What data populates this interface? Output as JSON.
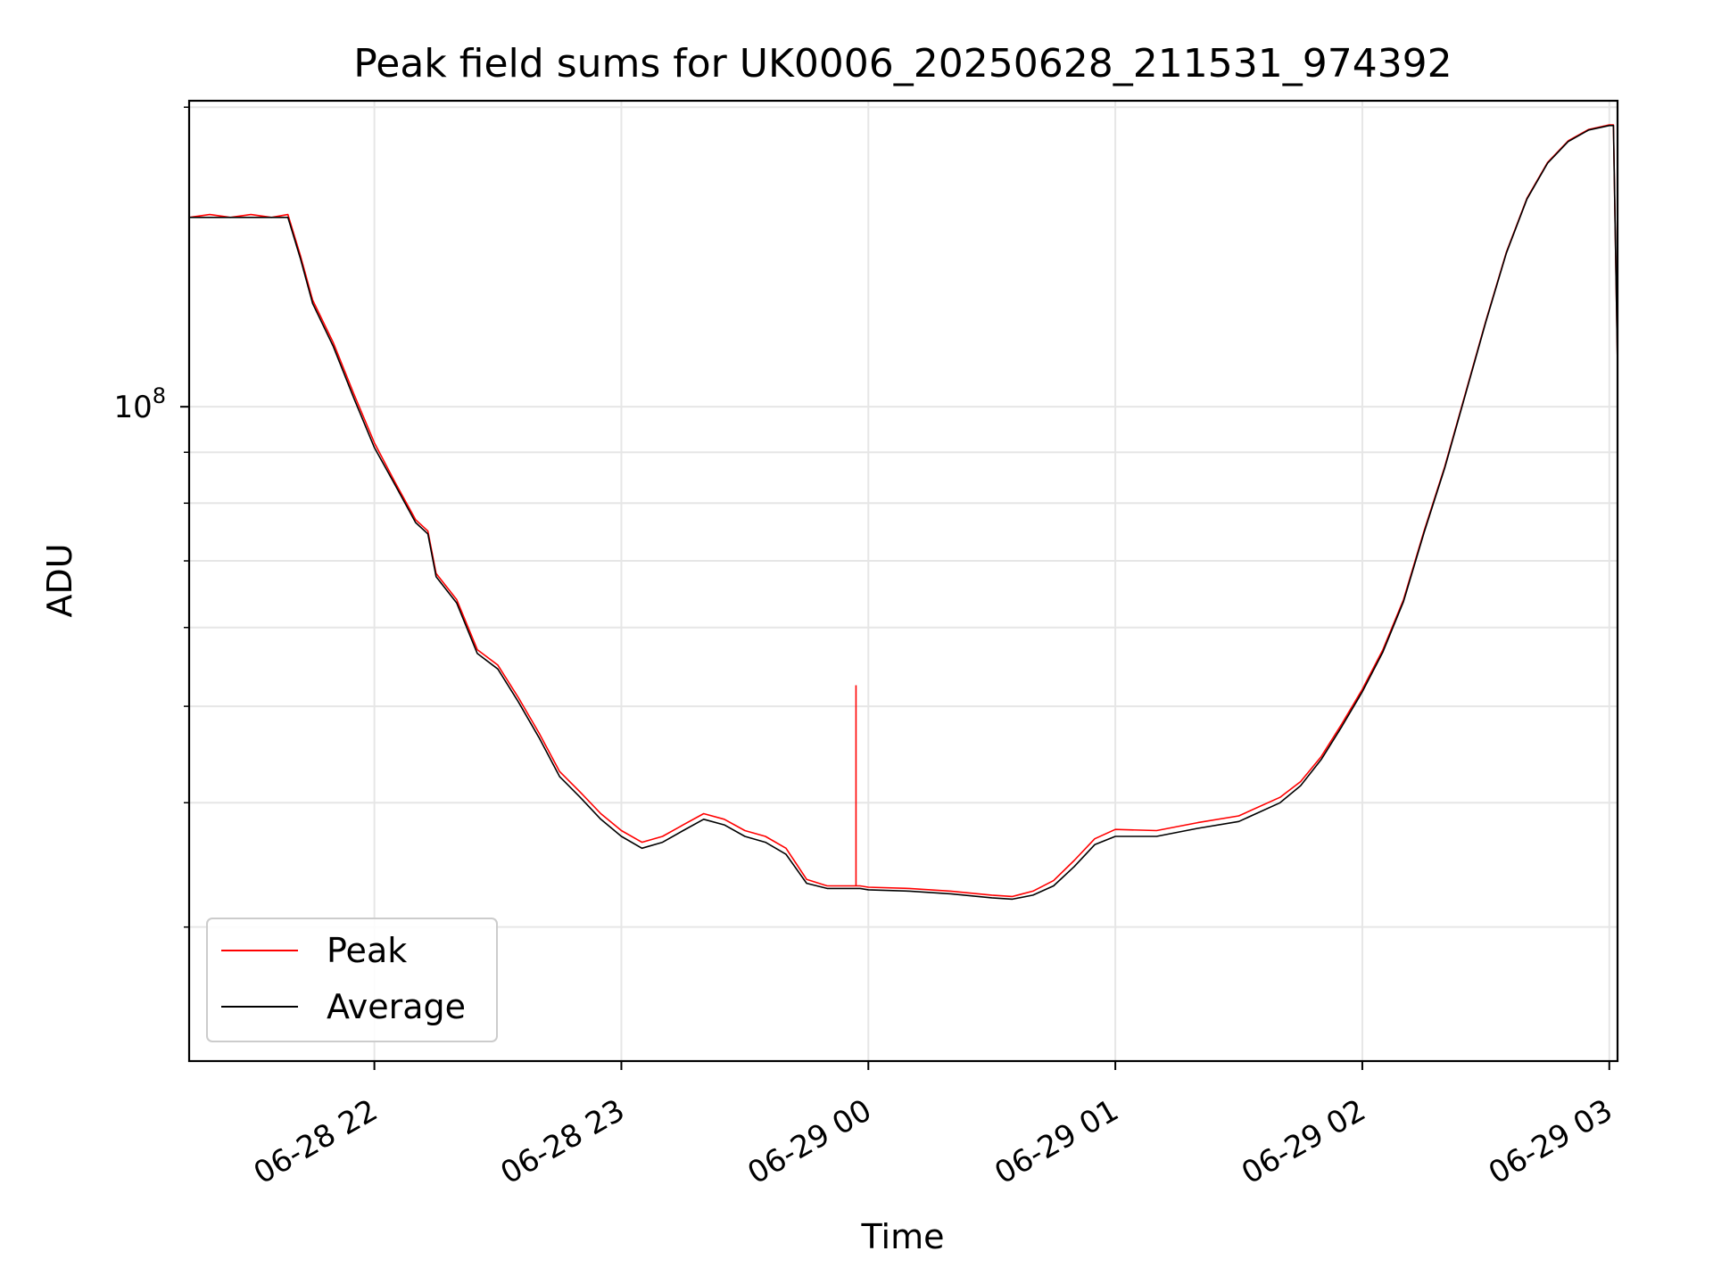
{
  "chart_data": {
    "type": "line",
    "title": "Peak field sums for UK0006_20250628_211531_974392",
    "xlabel": "Time",
    "ylabel": "ADU",
    "yscale": "log",
    "ylim": [
      22000000,
      203000000
    ],
    "xlim": [
      "2025-06-28 21:15",
      "2025-06-29 03:02"
    ],
    "x_ticks": [
      "06-28 22",
      "06-28 23",
      "06-29 00",
      "06-29 01",
      "06-29 02",
      "06-29 03"
    ],
    "y_ticks": [
      "10^8"
    ],
    "y_tick_text": {
      "base": "10",
      "exp": "8"
    },
    "grid": true,
    "legend_position": "lower-left",
    "series": [
      {
        "name": "Peak",
        "color": "#ff0000",
        "points": [
          [
            "21:15",
            155000000
          ],
          [
            "21:20",
            156000000
          ],
          [
            "21:25",
            155000000
          ],
          [
            "21:30",
            156000000
          ],
          [
            "21:35",
            155000000
          ],
          [
            "21:39",
            156000000
          ],
          [
            "21:42",
            142000000
          ],
          [
            "21:45",
            128000000
          ],
          [
            "21:50",
            116000000
          ],
          [
            "21:55",
            103000000
          ],
          [
            "22:00",
            92000000
          ],
          [
            "22:05",
            84000000
          ],
          [
            "22:10",
            77000000
          ],
          [
            "22:13",
            75000000
          ],
          [
            "22:15",
            68000000
          ],
          [
            "22:20",
            64000000
          ],
          [
            "22:25",
            57000000
          ],
          [
            "22:30",
            55000000
          ],
          [
            "22:35",
            51000000
          ],
          [
            "22:40",
            47000000
          ],
          [
            "22:45",
            43000000
          ],
          [
            "22:50",
            41000000
          ],
          [
            "22:55",
            39000000
          ],
          [
            "23:00",
            37500000
          ],
          [
            "23:05",
            36500000
          ],
          [
            "23:10",
            37000000
          ],
          [
            "23:15",
            38000000
          ],
          [
            "23:20",
            39000000
          ],
          [
            "23:25",
            38500000
          ],
          [
            "23:30",
            37500000
          ],
          [
            "23:35",
            37000000
          ],
          [
            "23:40",
            36000000
          ],
          [
            "23:45",
            33500000
          ],
          [
            "23:50",
            33000000
          ],
          [
            "23:55",
            33000000
          ],
          [
            "23:58",
            33000000
          ],
          [
            "00:00",
            32900000
          ],
          [
            "00:10",
            32800000
          ],
          [
            "00:20",
            32600000
          ],
          [
            "00:30",
            32300000
          ],
          [
            "00:35",
            32200000
          ],
          [
            "00:40",
            32600000
          ],
          [
            "00:45",
            33400000
          ],
          [
            "00:50",
            35000000
          ],
          [
            "00:55",
            36800000
          ],
          [
            "01:00",
            37600000
          ],
          [
            "01:10",
            37500000
          ],
          [
            "01:20",
            38200000
          ],
          [
            "01:30",
            38800000
          ],
          [
            "01:40",
            40500000
          ],
          [
            "01:45",
            42000000
          ],
          [
            "01:50",
            44500000
          ],
          [
            "01:55",
            48000000
          ],
          [
            "02:00",
            52000000
          ],
          [
            "02:05",
            57000000
          ],
          [
            "02:10",
            64000000
          ],
          [
            "02:15",
            75000000
          ],
          [
            "02:20",
            87000000
          ],
          [
            "02:25",
            103000000
          ],
          [
            "02:30",
            122000000
          ],
          [
            "02:35",
            143000000
          ],
          [
            "02:40",
            162000000
          ],
          [
            "02:45",
            176000000
          ],
          [
            "02:50",
            185000000
          ],
          [
            "02:55",
            190000000
          ],
          [
            "03:00",
            192000000
          ],
          [
            "03:01",
            192000000
          ],
          [
            "03:02",
            110000000
          ]
        ],
        "spikes": [
          {
            "time": "23:57",
            "value": 52500000
          }
        ]
      },
      {
        "name": "Average",
        "color": "#000000",
        "points": [
          [
            "21:15",
            155000000
          ],
          [
            "21:20",
            155000000
          ],
          [
            "21:25",
            155000000
          ],
          [
            "21:30",
            155000000
          ],
          [
            "21:35",
            155000000
          ],
          [
            "21:39",
            155000000
          ],
          [
            "21:42",
            141000000
          ],
          [
            "21:45",
            127000000
          ],
          [
            "21:50",
            115000000
          ],
          [
            "21:55",
            102000000
          ],
          [
            "22:00",
            91000000
          ],
          [
            "22:05",
            83500000
          ],
          [
            "22:10",
            76500000
          ],
          [
            "22:13",
            74500000
          ],
          [
            "22:15",
            67500000
          ],
          [
            "22:20",
            63500000
          ],
          [
            "22:25",
            56500000
          ],
          [
            "22:30",
            54500000
          ],
          [
            "22:35",
            50500000
          ],
          [
            "22:40",
            46500000
          ],
          [
            "22:45",
            42500000
          ],
          [
            "22:50",
            40500000
          ],
          [
            "22:55",
            38500000
          ],
          [
            "23:00",
            37000000
          ],
          [
            "23:05",
            36000000
          ],
          [
            "23:10",
            36500000
          ],
          [
            "23:15",
            37500000
          ],
          [
            "23:20",
            38500000
          ],
          [
            "23:25",
            38000000
          ],
          [
            "23:30",
            37000000
          ],
          [
            "23:35",
            36500000
          ],
          [
            "23:40",
            35500000
          ],
          [
            "23:45",
            33200000
          ],
          [
            "23:50",
            32800000
          ],
          [
            "23:55",
            32800000
          ],
          [
            "23:58",
            32800000
          ],
          [
            "00:00",
            32700000
          ],
          [
            "00:10",
            32600000
          ],
          [
            "00:20",
            32400000
          ],
          [
            "00:30",
            32100000
          ],
          [
            "00:35",
            32000000
          ],
          [
            "00:40",
            32300000
          ],
          [
            "00:45",
            33000000
          ],
          [
            "00:50",
            34500000
          ],
          [
            "00:55",
            36300000
          ],
          [
            "01:00",
            37000000
          ],
          [
            "01:10",
            37000000
          ],
          [
            "01:20",
            37700000
          ],
          [
            "01:30",
            38300000
          ],
          [
            "01:40",
            40000000
          ],
          [
            "01:45",
            41600000
          ],
          [
            "01:50",
            44200000
          ],
          [
            "01:55",
            47700000
          ],
          [
            "02:00",
            51700000
          ],
          [
            "02:05",
            56700000
          ],
          [
            "02:10",
            63700000
          ],
          [
            "02:15",
            74700000
          ],
          [
            "02:20",
            86700000
          ],
          [
            "02:25",
            102700000
          ],
          [
            "02:30",
            121700000
          ],
          [
            "02:35",
            142700000
          ],
          [
            "02:40",
            161700000
          ],
          [
            "02:45",
            175700000
          ],
          [
            "02:50",
            184700000
          ],
          [
            "02:55",
            189700000
          ],
          [
            "03:00",
            191700000
          ],
          [
            "03:01",
            191700000
          ],
          [
            "03:02",
            110000000
          ]
        ]
      }
    ]
  }
}
